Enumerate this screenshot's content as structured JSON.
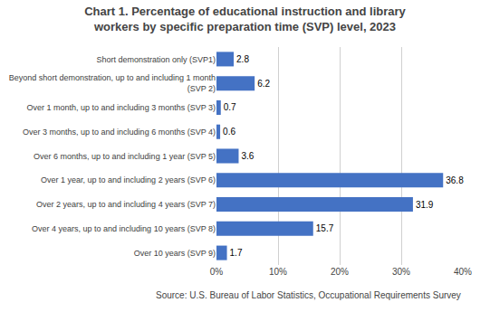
{
  "chart_data": {
    "type": "bar",
    "orientation": "horizontal",
    "title": "Chart 1. Percentage of educational instruction and library\nworkers by specific preparation time (SVP) level, 2023",
    "categories": [
      "Short demonstration only (SVP1)",
      "Beyond short demonstration, up to and including 1 month\n(SVP 2)",
      "Over 1 month, up to and including 3 months (SVP 3)",
      "Over 3 months, up to and including 6 months (SVP 4)",
      "Over 6 months, up to and including 1 year (SVP 5)",
      "Over 1 year, up to and including 2 years (SVP 6)",
      "Over 2 years, up to and including 4 years (SVP 7)",
      "Over 4 years, up to and including 10 years (SVP 8)",
      "Over 10 years (SVP 9)"
    ],
    "values": [
      2.8,
      6.2,
      0.7,
      0.6,
      3.6,
      36.8,
      31.9,
      15.7,
      1.7
    ],
    "color": "#4472c4",
    "xlim": [
      0,
      40
    ],
    "xticks": [
      {
        "value": 0,
        "label": "0%"
      },
      {
        "value": 10,
        "label": "10%"
      },
      {
        "value": 20,
        "label": "20%"
      },
      {
        "value": 30,
        "label": "30%"
      },
      {
        "value": 40,
        "label": "40%"
      }
    ],
    "grid": true,
    "data_labels": true,
    "source": "Source: U.S. Bureau of Labor Statistics, Occupational Requirements Survey"
  }
}
